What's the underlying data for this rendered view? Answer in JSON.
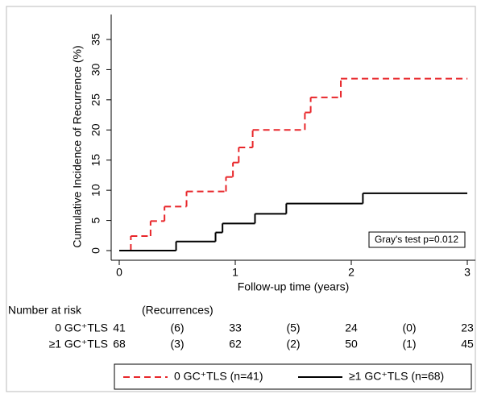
{
  "chart_data": {
    "type": "step",
    "y_label": "Cumulative Incidence of Recurrence (%)",
    "x_label": "Follow-up time (years)",
    "xlim": [
      0,
      3
    ],
    "xticks": [
      0,
      1,
      2,
      3
    ],
    "ylim": [
      0,
      35
    ],
    "yticks": [
      0,
      5,
      10,
      15,
      20,
      25,
      30,
      35
    ],
    "grid": false,
    "annotation": "Gray's test p=0.012",
    "legend": "bottom",
    "series": [
      {
        "name": "0 GC⁺TLS (n=41)",
        "color": "#e8262a",
        "dash": true,
        "x": [
          0,
          0.1,
          0.27,
          0.39,
          0.58,
          0.92,
          0.98,
          1.03,
          1.15,
          1.6,
          1.65,
          1.91,
          3
        ],
        "values": [
          0,
          2.4,
          4.9,
          7.3,
          9.8,
          12.2,
          14.6,
          17.1,
          20.0,
          22.9,
          25.4,
          28.5,
          28.5
        ]
      },
      {
        "name": "≥1 GC⁺TLS (n=68)",
        "color": "#000000",
        "dash": false,
        "x": [
          0,
          0.49,
          0.83,
          0.89,
          1.17,
          1.44,
          2.1,
          3
        ],
        "values": [
          0,
          1.5,
          3.0,
          4.5,
          6.1,
          7.8,
          9.5,
          9.5
        ]
      }
    ],
    "risk_table": {
      "title": "Number at risk",
      "subtitle": "(Recurrences)",
      "rows": [
        {
          "label": "0 GC⁺TLS",
          "at_risk": [
            41,
            33,
            24,
            23
          ],
          "recurrences": [
            "(6)",
            "(5)",
            "(0)"
          ]
        },
        {
          "label": "≥1 GC⁺TLS",
          "at_risk": [
            68,
            62,
            50,
            45
          ],
          "recurrences": [
            "(3)",
            "(2)",
            "(1)"
          ]
        }
      ]
    }
  }
}
